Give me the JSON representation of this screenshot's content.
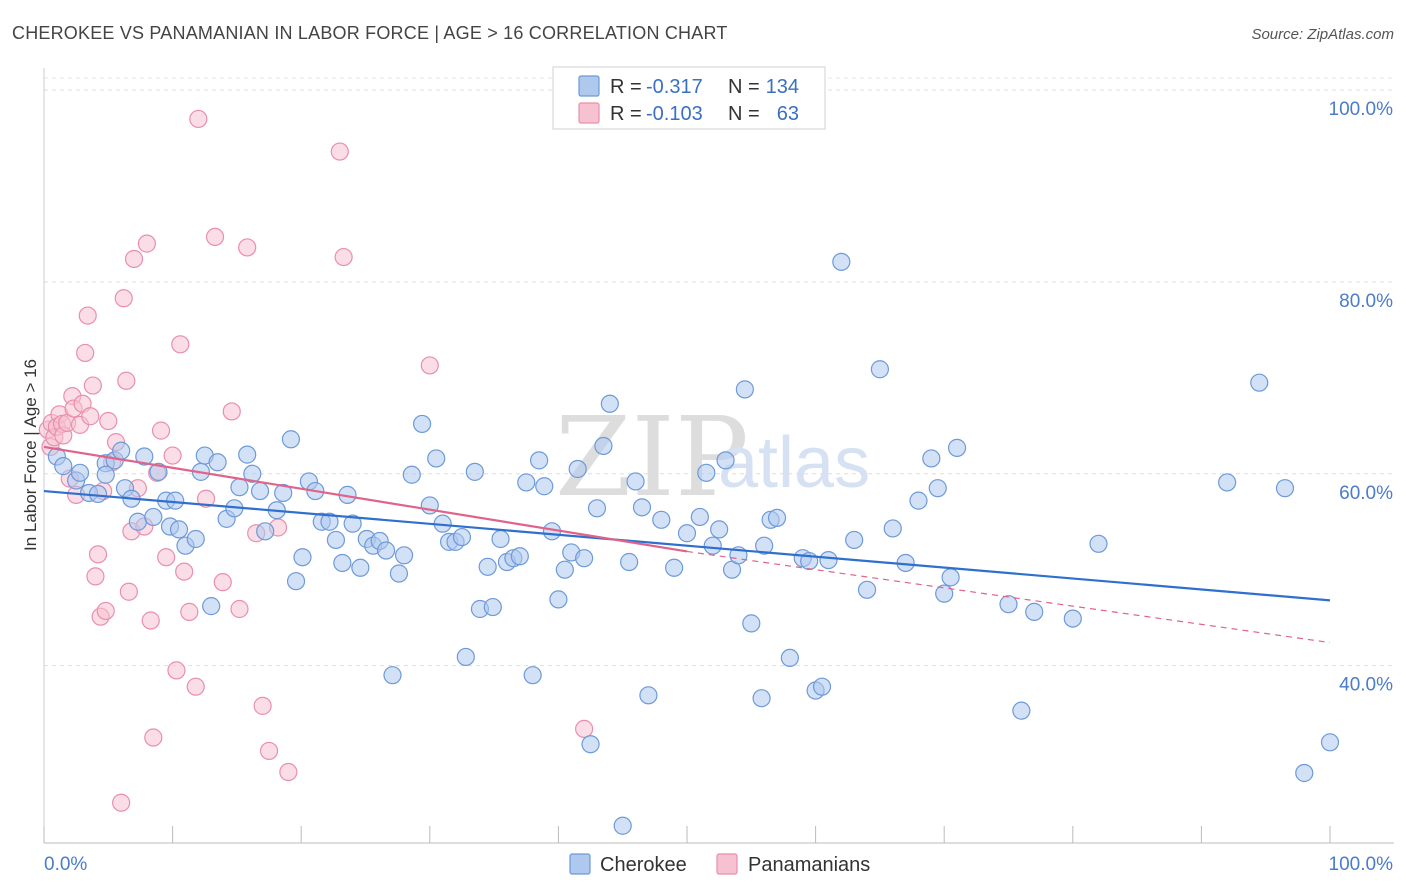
{
  "chart_data": {
    "type": "scatter",
    "title": "CHEROKEE VS PANAMANIAN IN LABOR FORCE | AGE > 16 CORRELATION CHART",
    "source": "Source: ZipAtlas.com",
    "ylabel": "In Labor Force | Age > 16",
    "xlabel": "",
    "xlim": [
      0,
      100
    ],
    "ylim": [
      21.5,
      102
    ],
    "x_tick_labels": [
      "0.0%",
      "100.0%"
    ],
    "y_ticks": [
      {
        "value": 100,
        "label": "100.0%"
      },
      {
        "value": 80,
        "label": "80.0%"
      },
      {
        "value": 60,
        "label": "60.0%"
      },
      {
        "value": 40,
        "label": "40.0%"
      }
    ],
    "grid": "horizontal dashed",
    "watermark": {
      "zip": "ZIP",
      "atlas": "atlas"
    },
    "stats_legend": {
      "r_label": "R =",
      "n_label": "N =",
      "rows": [
        {
          "series": "Cherokee",
          "r": "-0.317",
          "n": "134"
        },
        {
          "series": "Panamanians",
          "r": "-0.103",
          "n": "63"
        }
      ]
    },
    "colors": {
      "Cherokee": {
        "fill": "#aec8ee",
        "stroke": "#6d9ad9",
        "line": "#2f6fce"
      },
      "Panamanians": {
        "fill": "#f6c1d1",
        "stroke": "#ea8fab",
        "line": "#e0638a"
      }
    },
    "series": [
      {
        "name": "Cherokee",
        "trend": {
          "x": [
            0,
            100
          ],
          "y": [
            58.2,
            46.8
          ],
          "style": "solid"
        },
        "points": [
          [
            1.0,
            61.8
          ],
          [
            1.5,
            60.8
          ],
          [
            2.5,
            59.3
          ],
          [
            2.8,
            60.1
          ],
          [
            3.5,
            58.0
          ],
          [
            4.2,
            57.9
          ],
          [
            4.8,
            61.1
          ],
          [
            5.5,
            61.4
          ],
          [
            6.0,
            62.4
          ],
          [
            6.3,
            58.5
          ],
          [
            6.8,
            57.4
          ],
          [
            7.3,
            55.0
          ],
          [
            7.8,
            61.8
          ],
          [
            8.5,
            55.5
          ],
          [
            8.9,
            60.2
          ],
          [
            9.5,
            57.2
          ],
          [
            9.8,
            54.5
          ],
          [
            10.2,
            57.2
          ],
          [
            10.5,
            54.2
          ],
          [
            11.0,
            52.5
          ],
          [
            11.8,
            53.2
          ],
          [
            12.2,
            60.2
          ],
          [
            12.5,
            61.9
          ],
          [
            13.0,
            46.2
          ],
          [
            13.5,
            61.2
          ],
          [
            14.2,
            55.3
          ],
          [
            14.8,
            56.4
          ],
          [
            15.2,
            58.6
          ],
          [
            15.8,
            62.0
          ],
          [
            16.2,
            60.0
          ],
          [
            16.8,
            58.2
          ],
          [
            17.2,
            54.0
          ],
          [
            18.1,
            56.2
          ],
          [
            18.6,
            58.0
          ],
          [
            19.2,
            63.6
          ],
          [
            19.6,
            48.8
          ],
          [
            20.1,
            51.3
          ],
          [
            20.6,
            59.2
          ],
          [
            21.1,
            58.2
          ],
          [
            21.6,
            55.0
          ],
          [
            22.2,
            55.0
          ],
          [
            22.7,
            53.1
          ],
          [
            23.2,
            50.7
          ],
          [
            23.6,
            57.8
          ],
          [
            24.0,
            54.8
          ],
          [
            24.6,
            50.2
          ],
          [
            25.1,
            53.2
          ],
          [
            25.6,
            52.5
          ],
          [
            26.1,
            53.0
          ],
          [
            26.6,
            52.0
          ],
          [
            27.1,
            39.0
          ],
          [
            27.6,
            49.6
          ],
          [
            28.0,
            51.5
          ],
          [
            28.6,
            59.9
          ],
          [
            29.4,
            65.2
          ],
          [
            30.0,
            56.7
          ],
          [
            30.5,
            61.6
          ],
          [
            31.0,
            54.8
          ],
          [
            31.5,
            52.9
          ],
          [
            32.0,
            52.9
          ],
          [
            32.5,
            53.4
          ],
          [
            32.8,
            40.9
          ],
          [
            33.5,
            60.2
          ],
          [
            33.9,
            45.9
          ],
          [
            34.5,
            50.3
          ],
          [
            34.9,
            46.1
          ],
          [
            35.5,
            53.2
          ],
          [
            36.0,
            50.8
          ],
          [
            36.5,
            51.2
          ],
          [
            37.0,
            51.4
          ],
          [
            37.5,
            59.1
          ],
          [
            38.0,
            39.0
          ],
          [
            38.5,
            61.4
          ],
          [
            38.9,
            58.7
          ],
          [
            39.5,
            54.0
          ],
          [
            40.0,
            46.9
          ],
          [
            40.5,
            50.0
          ],
          [
            41.0,
            51.8
          ],
          [
            41.5,
            60.5
          ],
          [
            42.0,
            51.2
          ],
          [
            42.5,
            31.8
          ],
          [
            43.0,
            56.4
          ],
          [
            43.5,
            62.9
          ],
          [
            44.0,
            67.3
          ],
          [
            45.0,
            23.3
          ],
          [
            45.5,
            50.8
          ],
          [
            46.0,
            59.2
          ],
          [
            46.5,
            56.5
          ],
          [
            47.0,
            36.9
          ],
          [
            48.0,
            55.2
          ],
          [
            49.0,
            50.2
          ],
          [
            50.0,
            53.8
          ],
          [
            51.0,
            55.5
          ],
          [
            51.5,
            60.1
          ],
          [
            52.0,
            52.5
          ],
          [
            52.5,
            54.2
          ],
          [
            53.0,
            61.4
          ],
          [
            53.5,
            50.0
          ],
          [
            54.0,
            51.5
          ],
          [
            54.5,
            68.8
          ],
          [
            55.0,
            44.4
          ],
          [
            55.8,
            36.6
          ],
          [
            56.5,
            55.2
          ],
          [
            57.0,
            55.4
          ],
          [
            58.0,
            40.8
          ],
          [
            59.0,
            51.2
          ],
          [
            59.5,
            50.9
          ],
          [
            60.0,
            37.4
          ],
          [
            60.5,
            37.8
          ],
          [
            61.0,
            51.0
          ],
          [
            62.0,
            82.1
          ],
          [
            63.0,
            53.1
          ],
          [
            64.0,
            47.9
          ],
          [
            65.0,
            70.9
          ],
          [
            66.0,
            54.3
          ],
          [
            67.0,
            50.7
          ],
          [
            68.0,
            57.2
          ],
          [
            69.0,
            61.6
          ],
          [
            69.5,
            58.5
          ],
          [
            70.0,
            47.5
          ],
          [
            70.5,
            49.2
          ],
          [
            71.0,
            62.7
          ],
          [
            75.0,
            46.4
          ],
          [
            76.0,
            35.3
          ],
          [
            77.0,
            45.6
          ],
          [
            80.0,
            44.9
          ],
          [
            82.0,
            52.7
          ],
          [
            92.0,
            59.1
          ],
          [
            94.5,
            69.5
          ],
          [
            96.5,
            58.5
          ],
          [
            98.0,
            28.8
          ],
          [
            100.0,
            32.0
          ],
          [
            56.0,
            52.5
          ],
          [
            4.8,
            59.9
          ]
        ]
      },
      {
        "name": "Panamanians",
        "trend": {
          "x": [
            0,
            50
          ],
          "y": [
            62.8,
            51.9
          ],
          "x_dashed": [
            50,
            100
          ],
          "y_dashed": [
            51.9,
            42.4
          ]
        },
        "points": [
          [
            0.3,
            64.6
          ],
          [
            0.5,
            62.8
          ],
          [
            0.6,
            65.3
          ],
          [
            0.8,
            63.8
          ],
          [
            1.0,
            64.9
          ],
          [
            1.2,
            66.2
          ],
          [
            1.4,
            65.2
          ],
          [
            1.5,
            64.0
          ],
          [
            1.8,
            65.3
          ],
          [
            2.0,
            59.5
          ],
          [
            2.2,
            68.1
          ],
          [
            2.3,
            66.8
          ],
          [
            2.5,
            57.8
          ],
          [
            2.8,
            65.1
          ],
          [
            3.0,
            67.3
          ],
          [
            3.2,
            72.6
          ],
          [
            3.4,
            76.5
          ],
          [
            3.6,
            66.0
          ],
          [
            3.8,
            69.2
          ],
          [
            4.0,
            49.3
          ],
          [
            4.2,
            51.6
          ],
          [
            4.4,
            45.1
          ],
          [
            4.6,
            58.2
          ],
          [
            4.8,
            45.7
          ],
          [
            5.0,
            65.5
          ],
          [
            5.3,
            61.2
          ],
          [
            5.6,
            63.3
          ],
          [
            6.0,
            25.7
          ],
          [
            6.2,
            78.3
          ],
          [
            6.4,
            69.7
          ],
          [
            6.6,
            47.7
          ],
          [
            6.8,
            54.0
          ],
          [
            7.0,
            82.4
          ],
          [
            7.3,
            58.5
          ],
          [
            7.8,
            54.5
          ],
          [
            8.0,
            84.0
          ],
          [
            8.3,
            44.7
          ],
          [
            8.5,
            32.5
          ],
          [
            8.8,
            60.1
          ],
          [
            9.1,
            64.5
          ],
          [
            9.5,
            51.3
          ],
          [
            10.0,
            61.9
          ],
          [
            10.3,
            39.5
          ],
          [
            10.6,
            73.5
          ],
          [
            10.9,
            49.8
          ],
          [
            11.3,
            45.6
          ],
          [
            11.8,
            37.8
          ],
          [
            12.0,
            97.0
          ],
          [
            12.6,
            57.4
          ],
          [
            13.3,
            84.7
          ],
          [
            13.9,
            48.7
          ],
          [
            14.6,
            66.5
          ],
          [
            15.2,
            45.9
          ],
          [
            15.8,
            83.6
          ],
          [
            16.5,
            53.8
          ],
          [
            17.0,
            35.8
          ],
          [
            17.5,
            31.1
          ],
          [
            18.2,
            54.4
          ],
          [
            19.0,
            28.9
          ],
          [
            23.0,
            93.6
          ],
          [
            23.3,
            82.6
          ],
          [
            30.0,
            71.3
          ],
          [
            42.0,
            33.4
          ]
        ]
      }
    ]
  },
  "legend": {
    "items": [
      {
        "label": "Cherokee"
      },
      {
        "label": "Panamanians"
      }
    ]
  }
}
